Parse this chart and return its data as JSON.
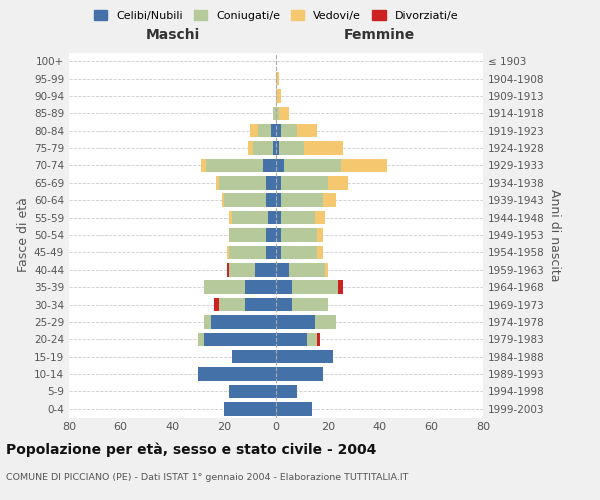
{
  "age_groups": [
    "0-4",
    "5-9",
    "10-14",
    "15-19",
    "20-24",
    "25-29",
    "30-34",
    "35-39",
    "40-44",
    "45-49",
    "50-54",
    "55-59",
    "60-64",
    "65-69",
    "70-74",
    "75-79",
    "80-84",
    "85-89",
    "90-94",
    "95-99",
    "100+"
  ],
  "birth_years": [
    "1999-2003",
    "1994-1998",
    "1989-1993",
    "1984-1988",
    "1979-1983",
    "1974-1978",
    "1969-1973",
    "1964-1968",
    "1959-1963",
    "1954-1958",
    "1949-1953",
    "1944-1948",
    "1939-1943",
    "1934-1938",
    "1929-1933",
    "1924-1928",
    "1919-1923",
    "1914-1918",
    "1909-1913",
    "1904-1908",
    "≤ 1903"
  ],
  "maschi": {
    "celibi": [
      20,
      18,
      30,
      17,
      28,
      25,
      12,
      12,
      8,
      4,
      4,
      3,
      4,
      4,
      5,
      1,
      2,
      0,
      0,
      0,
      0
    ],
    "coniugati": [
      0,
      0,
      0,
      0,
      2,
      3,
      10,
      16,
      10,
      14,
      14,
      14,
      16,
      18,
      22,
      8,
      5,
      1,
      0,
      0,
      0
    ],
    "vedovi": [
      0,
      0,
      0,
      0,
      0,
      0,
      0,
      0,
      0,
      1,
      0,
      1,
      1,
      1,
      2,
      2,
      3,
      0,
      0,
      0,
      0
    ],
    "divorziati": [
      0,
      0,
      0,
      0,
      0,
      0,
      2,
      0,
      1,
      0,
      0,
      0,
      0,
      0,
      0,
      0,
      0,
      0,
      0,
      0,
      0
    ]
  },
  "femmine": {
    "nubili": [
      14,
      8,
      18,
      22,
      12,
      15,
      6,
      6,
      5,
      2,
      2,
      2,
      2,
      2,
      3,
      1,
      2,
      0,
      0,
      0,
      0
    ],
    "coniugate": [
      0,
      0,
      0,
      0,
      4,
      8,
      14,
      18,
      14,
      14,
      14,
      13,
      16,
      18,
      22,
      10,
      6,
      1,
      0,
      0,
      0
    ],
    "vedove": [
      0,
      0,
      0,
      0,
      0,
      0,
      0,
      0,
      1,
      2,
      2,
      4,
      5,
      8,
      18,
      15,
      8,
      4,
      2,
      1,
      0
    ],
    "divorziate": [
      0,
      0,
      0,
      0,
      1,
      0,
      0,
      2,
      0,
      0,
      0,
      0,
      0,
      0,
      0,
      0,
      0,
      0,
      0,
      0,
      0
    ]
  },
  "color_celibi": "#4472a8",
  "color_coniugati": "#b5c99a",
  "color_vedovi": "#f5c76e",
  "color_divorziati": "#cc2222",
  "title": "Popolazione per età, sesso e stato civile - 2004",
  "subtitle": "COMUNE DI PICCIANO (PE) - Dati ISTAT 1° gennaio 2004 - Elaborazione TUTTITALIA.IT",
  "ylabel_left": "Fasce di età",
  "ylabel_right": "Anni di nascita",
  "xlabel_left": "Maschi",
  "xlabel_right": "Femmine",
  "xlim": 80,
  "legend_labels": [
    "Celibi/Nubili",
    "Coniugati/e",
    "Vedovi/e",
    "Divorziati/e"
  ],
  "bg_color": "#f0f0f0",
  "plot_bg_color": "#ffffff"
}
